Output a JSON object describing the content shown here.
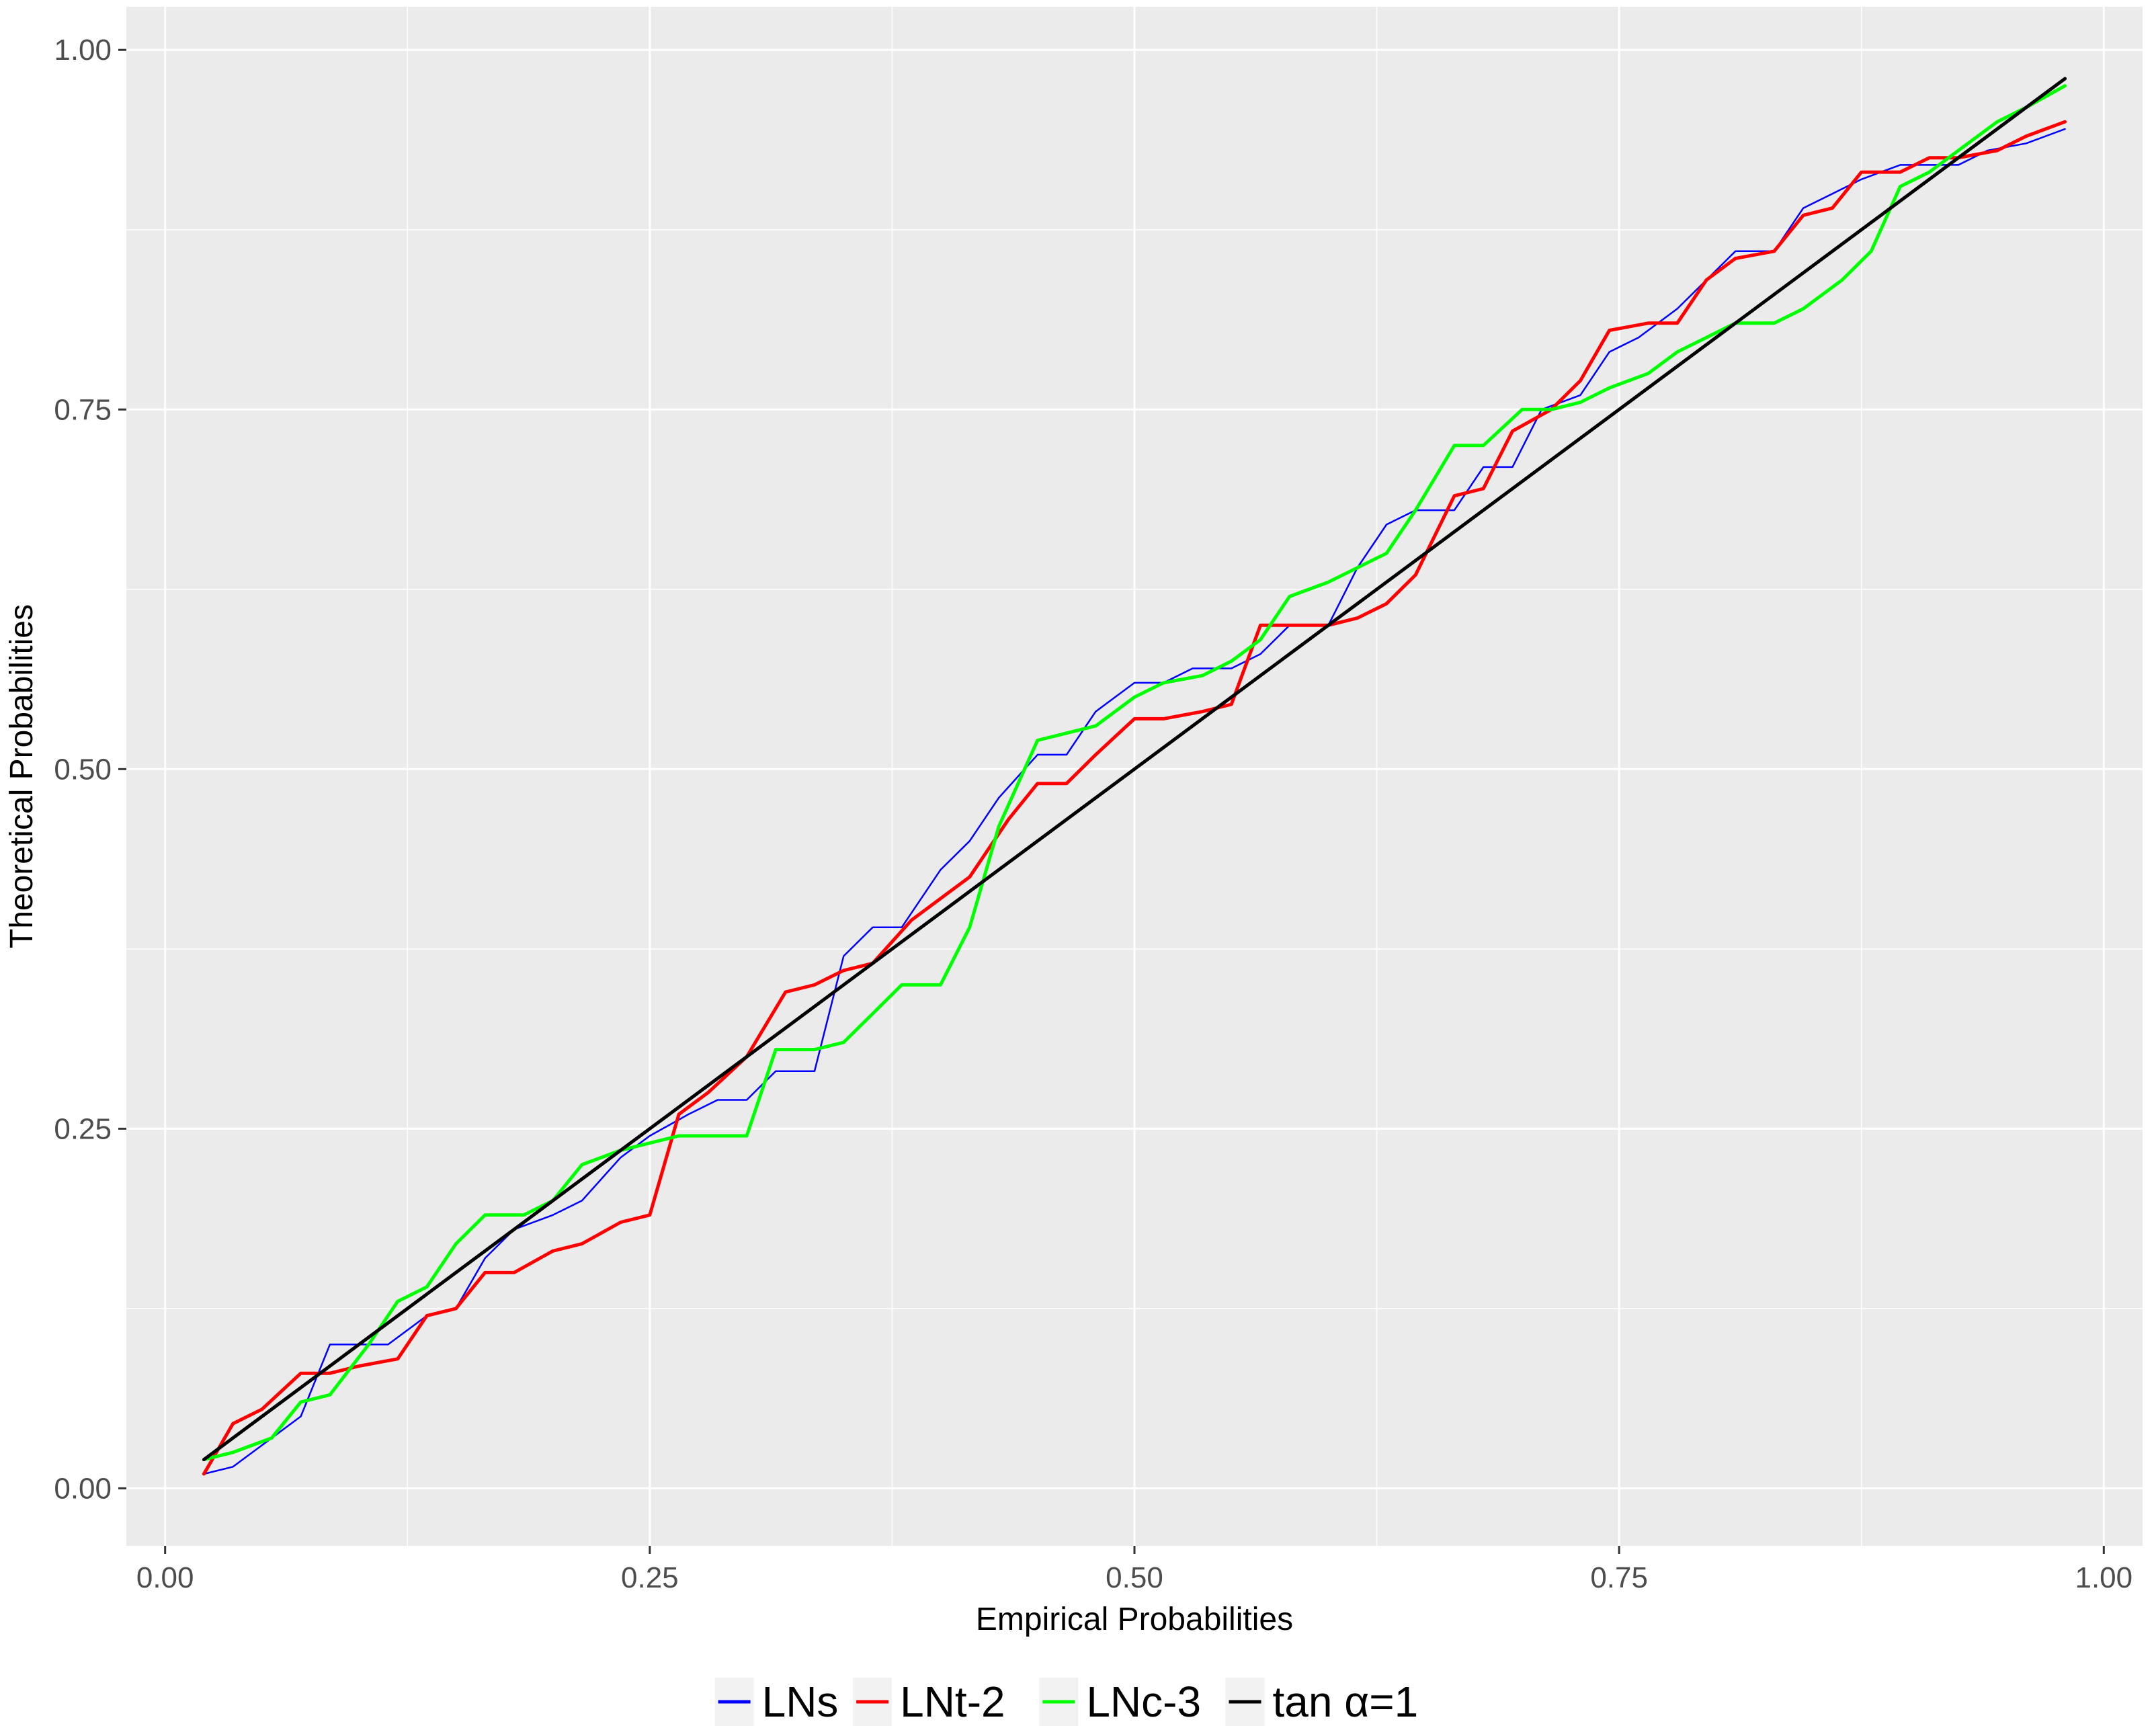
{
  "chart_data": {
    "type": "line",
    "title": "",
    "xlabel": "Empirical Probabilities",
    "ylabel": "Theoretical Probabilities",
    "xlim": [
      -0.02,
      1.02
    ],
    "ylim": [
      -0.04,
      1.03
    ],
    "x_ticks": [
      "0.00",
      "0.25",
      "0.50",
      "0.75",
      "1.00"
    ],
    "y_ticks": [
      "0.00",
      "0.25",
      "0.50",
      "0.75",
      "1.00"
    ],
    "grid": true,
    "legend_position": "bottom",
    "series": [
      {
        "name": "LNs",
        "color": "#0000FF",
        "x": [
          0.02,
          0.035,
          0.05,
          0.07,
          0.085,
          0.1,
          0.115,
          0.135,
          0.15,
          0.165,
          0.18,
          0.2,
          0.215,
          0.235,
          0.25,
          0.27,
          0.285,
          0.3,
          0.315,
          0.335,
          0.35,
          0.365,
          0.38,
          0.4,
          0.415,
          0.43,
          0.45,
          0.465,
          0.48,
          0.5,
          0.515,
          0.53,
          0.55,
          0.565,
          0.58,
          0.6,
          0.615,
          0.63,
          0.645,
          0.665,
          0.68,
          0.695,
          0.71,
          0.73,
          0.745,
          0.76,
          0.78,
          0.795,
          0.81,
          0.83,
          0.845,
          0.86,
          0.875,
          0.895,
          0.91,
          0.925,
          0.94,
          0.96,
          0.98
        ],
        "y": [
          0.01,
          0.015,
          0.03,
          0.05,
          0.1,
          0.1,
          0.1,
          0.12,
          0.125,
          0.16,
          0.18,
          0.19,
          0.2,
          0.23,
          0.245,
          0.26,
          0.27,
          0.27,
          0.29,
          0.29,
          0.37,
          0.39,
          0.39,
          0.43,
          0.45,
          0.48,
          0.51,
          0.51,
          0.54,
          0.56,
          0.56,
          0.57,
          0.57,
          0.58,
          0.6,
          0.6,
          0.64,
          0.67,
          0.68,
          0.68,
          0.71,
          0.71,
          0.75,
          0.76,
          0.79,
          0.8,
          0.82,
          0.84,
          0.86,
          0.86,
          0.89,
          0.9,
          0.91,
          0.92,
          0.92,
          0.92,
          0.93,
          0.935,
          0.945
        ]
      },
      {
        "name": "LNt-2",
        "color": "#FF0000",
        "x": [
          0.02,
          0.035,
          0.05,
          0.07,
          0.085,
          0.1,
          0.12,
          0.135,
          0.15,
          0.165,
          0.18,
          0.2,
          0.215,
          0.235,
          0.25,
          0.265,
          0.28,
          0.3,
          0.32,
          0.335,
          0.35,
          0.365,
          0.385,
          0.4,
          0.415,
          0.435,
          0.45,
          0.465,
          0.48,
          0.5,
          0.515,
          0.535,
          0.55,
          0.565,
          0.58,
          0.6,
          0.615,
          0.63,
          0.645,
          0.665,
          0.68,
          0.695,
          0.715,
          0.73,
          0.745,
          0.765,
          0.78,
          0.795,
          0.81,
          0.83,
          0.845,
          0.86,
          0.875,
          0.895,
          0.91,
          0.925,
          0.945,
          0.96,
          0.98
        ],
        "y": [
          0.01,
          0.045,
          0.055,
          0.08,
          0.08,
          0.085,
          0.09,
          0.12,
          0.125,
          0.15,
          0.15,
          0.165,
          0.17,
          0.185,
          0.19,
          0.26,
          0.275,
          0.3,
          0.345,
          0.35,
          0.36,
          0.365,
          0.395,
          0.41,
          0.425,
          0.465,
          0.49,
          0.49,
          0.51,
          0.535,
          0.535,
          0.54,
          0.545,
          0.6,
          0.6,
          0.6,
          0.605,
          0.615,
          0.635,
          0.69,
          0.695,
          0.735,
          0.75,
          0.77,
          0.805,
          0.81,
          0.81,
          0.84,
          0.855,
          0.86,
          0.885,
          0.89,
          0.915,
          0.915,
          0.925,
          0.925,
          0.93,
          0.94,
          0.95
        ]
      },
      {
        "name": "LNc-3",
        "color": "#00FF00",
        "x": [
          0.02,
          0.035,
          0.055,
          0.07,
          0.085,
          0.105,
          0.12,
          0.135,
          0.15,
          0.165,
          0.185,
          0.2,
          0.215,
          0.235,
          0.25,
          0.265,
          0.285,
          0.3,
          0.315,
          0.335,
          0.35,
          0.365,
          0.38,
          0.4,
          0.415,
          0.43,
          0.45,
          0.465,
          0.48,
          0.5,
          0.515,
          0.535,
          0.55,
          0.565,
          0.58,
          0.6,
          0.615,
          0.63,
          0.645,
          0.665,
          0.68,
          0.7,
          0.715,
          0.73,
          0.745,
          0.765,
          0.78,
          0.795,
          0.81,
          0.83,
          0.845,
          0.865,
          0.88,
          0.895,
          0.91,
          0.93,
          0.945,
          0.96,
          0.98
        ],
        "y": [
          0.02,
          0.025,
          0.035,
          0.06,
          0.065,
          0.1,
          0.13,
          0.14,
          0.17,
          0.19,
          0.19,
          0.2,
          0.225,
          0.235,
          0.24,
          0.245,
          0.245,
          0.245,
          0.305,
          0.305,
          0.31,
          0.33,
          0.35,
          0.35,
          0.39,
          0.46,
          0.52,
          0.525,
          0.53,
          0.55,
          0.56,
          0.565,
          0.575,
          0.59,
          0.62,
          0.63,
          0.64,
          0.65,
          0.68,
          0.725,
          0.725,
          0.75,
          0.75,
          0.755,
          0.765,
          0.775,
          0.79,
          0.8,
          0.81,
          0.81,
          0.82,
          0.84,
          0.86,
          0.905,
          0.915,
          0.935,
          0.95,
          0.96,
          0.975
        ]
      },
      {
        "name": "tan α=1",
        "color": "#000000",
        "x": [
          0.02,
          0.98
        ],
        "y": [
          0.02,
          0.98
        ]
      }
    ]
  }
}
